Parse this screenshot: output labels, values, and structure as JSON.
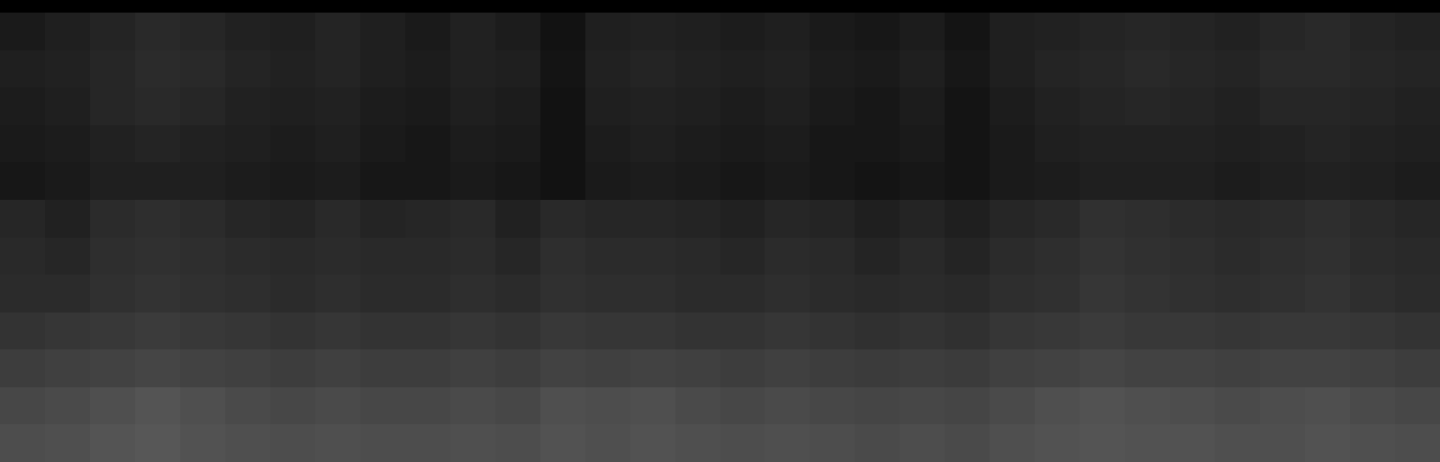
{
  "chart_data": {
    "type": "heatmap",
    "tick_labels": false,
    "grid": false,
    "color": "#ffffff",
    "zlim": [
      0,
      1
    ],
    "cells": [
      [
        0.1,
        0.12,
        0.14,
        0.16,
        0.15,
        0.13,
        0.12,
        0.14,
        0.12,
        0.1,
        0.13,
        0.11,
        0.07,
        0.12,
        0.13,
        0.12,
        0.11,
        0.12,
        0.1,
        0.09,
        0.11,
        0.08,
        0.12,
        0.13,
        0.14,
        0.15,
        0.14,
        0.13,
        0.15,
        0.16,
        0.14,
        0.13
      ],
      [
        0.12,
        0.13,
        0.15,
        0.17,
        0.16,
        0.14,
        0.13,
        0.14,
        0.12,
        0.11,
        0.13,
        0.12,
        0.08,
        0.13,
        0.14,
        0.13,
        0.12,
        0.13,
        0.11,
        0.1,
        0.12,
        0.09,
        0.12,
        0.14,
        0.15,
        0.16,
        0.15,
        0.14,
        0.16,
        0.16,
        0.15,
        0.14
      ],
      [
        0.11,
        0.12,
        0.15,
        0.16,
        0.15,
        0.13,
        0.12,
        0.13,
        0.11,
        0.1,
        0.12,
        0.11,
        0.07,
        0.12,
        0.13,
        0.12,
        0.11,
        0.12,
        0.1,
        0.09,
        0.11,
        0.08,
        0.11,
        0.13,
        0.14,
        0.15,
        0.14,
        0.13,
        0.15,
        0.15,
        0.14,
        0.13
      ],
      [
        0.1,
        0.11,
        0.13,
        0.14,
        0.13,
        0.12,
        0.11,
        0.12,
        0.1,
        0.09,
        0.11,
        0.1,
        0.07,
        0.11,
        0.12,
        0.11,
        0.1,
        0.11,
        0.09,
        0.09,
        0.1,
        0.08,
        0.1,
        0.12,
        0.13,
        0.13,
        0.13,
        0.12,
        0.13,
        0.14,
        0.13,
        0.12
      ],
      [
        0.09,
        0.1,
        0.12,
        0.12,
        0.12,
        0.11,
        0.1,
        0.11,
        0.09,
        0.09,
        0.1,
        0.09,
        0.07,
        0.1,
        0.11,
        0.1,
        0.09,
        0.1,
        0.09,
        0.08,
        0.09,
        0.08,
        0.1,
        0.11,
        0.12,
        0.12,
        0.12,
        0.11,
        0.12,
        0.13,
        0.12,
        0.11
      ],
      [
        0.15,
        0.13,
        0.17,
        0.18,
        0.17,
        0.15,
        0.14,
        0.16,
        0.14,
        0.15,
        0.16,
        0.13,
        0.16,
        0.15,
        0.15,
        0.14,
        0.13,
        0.15,
        0.14,
        0.12,
        0.14,
        0.12,
        0.15,
        0.16,
        0.19,
        0.18,
        0.17,
        0.16,
        0.17,
        0.18,
        0.16,
        0.15
      ],
      [
        0.16,
        0.15,
        0.18,
        0.19,
        0.18,
        0.17,
        0.16,
        0.17,
        0.16,
        0.16,
        0.17,
        0.15,
        0.18,
        0.17,
        0.17,
        0.16,
        0.15,
        0.17,
        0.16,
        0.14,
        0.16,
        0.14,
        0.17,
        0.18,
        0.2,
        0.19,
        0.18,
        0.17,
        0.18,
        0.19,
        0.17,
        0.16
      ],
      [
        0.17,
        0.17,
        0.19,
        0.2,
        0.19,
        0.18,
        0.17,
        0.18,
        0.17,
        0.17,
        0.18,
        0.17,
        0.19,
        0.18,
        0.18,
        0.17,
        0.17,
        0.18,
        0.17,
        0.16,
        0.17,
        0.16,
        0.18,
        0.19,
        0.21,
        0.2,
        0.19,
        0.18,
        0.19,
        0.2,
        0.18,
        0.17
      ],
      [
        0.2,
        0.21,
        0.22,
        0.23,
        0.22,
        0.21,
        0.2,
        0.21,
        0.2,
        0.2,
        0.21,
        0.2,
        0.22,
        0.21,
        0.21,
        0.2,
        0.2,
        0.21,
        0.2,
        0.19,
        0.2,
        0.19,
        0.21,
        0.22,
        0.23,
        0.22,
        0.22,
        0.21,
        0.22,
        0.22,
        0.21,
        0.2
      ],
      [
        0.24,
        0.25,
        0.26,
        0.27,
        0.26,
        0.25,
        0.24,
        0.25,
        0.24,
        0.24,
        0.25,
        0.24,
        0.26,
        0.25,
        0.26,
        0.25,
        0.24,
        0.25,
        0.24,
        0.23,
        0.24,
        0.23,
        0.25,
        0.26,
        0.27,
        0.26,
        0.26,
        0.25,
        0.26,
        0.26,
        0.25,
        0.24
      ],
      [
        0.28,
        0.29,
        0.31,
        0.33,
        0.31,
        0.29,
        0.28,
        0.29,
        0.28,
        0.28,
        0.29,
        0.28,
        0.31,
        0.3,
        0.31,
        0.29,
        0.28,
        0.29,
        0.28,
        0.27,
        0.28,
        0.27,
        0.29,
        0.31,
        0.32,
        0.31,
        0.3,
        0.29,
        0.3,
        0.31,
        0.29,
        0.28
      ],
      [
        0.3,
        0.31,
        0.33,
        0.34,
        0.32,
        0.31,
        0.3,
        0.31,
        0.3,
        0.3,
        0.31,
        0.3,
        0.32,
        0.31,
        0.32,
        0.31,
        0.3,
        0.31,
        0.3,
        0.29,
        0.3,
        0.29,
        0.31,
        0.32,
        0.33,
        0.32,
        0.32,
        0.31,
        0.31,
        0.32,
        0.31,
        0.3
      ]
    ]
  }
}
